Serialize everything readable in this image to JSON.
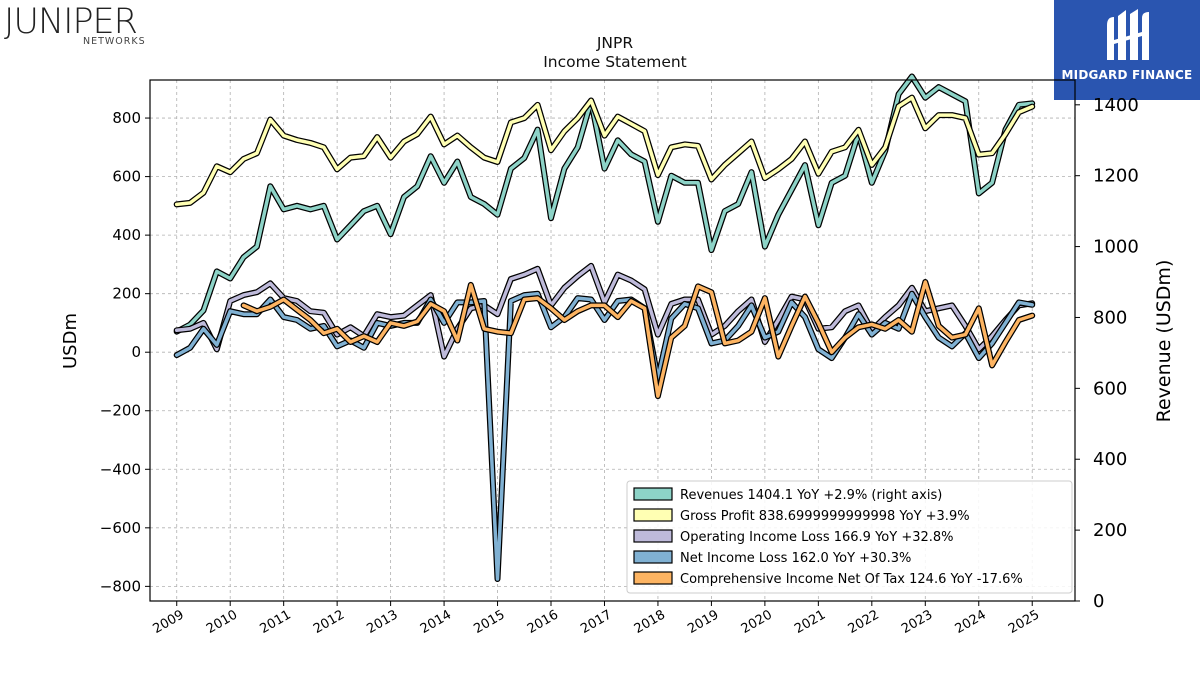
{
  "header": {
    "ticker": "JNPR",
    "subtitle": "Income Statement"
  },
  "logos": {
    "left_word": "JUNIPER",
    "left_sub": "NETWORKS",
    "right_text": "MIDGARD FINANCE",
    "right_bg": "#2a55b0"
  },
  "chart_data": {
    "type": "line",
    "ylabel_left": "USDm",
    "ylabel_right": "Revenue (USDm)",
    "ylim_left": [
      -850,
      930
    ],
    "ylim_right": [
      0,
      1470
    ],
    "yticks_left": [
      -800,
      -600,
      -400,
      -200,
      0,
      200,
      400,
      600,
      800
    ],
    "yticks_right": [
      0,
      200,
      400,
      600,
      800,
      1000,
      1200,
      1400
    ],
    "xlim": [
      2008.5,
      2025.8
    ],
    "xticks": [
      2009,
      2010,
      2011,
      2012,
      2013,
      2014,
      2015,
      2016,
      2017,
      2018,
      2019,
      2020,
      2021,
      2022,
      2023,
      2024,
      2025
    ],
    "grid": true,
    "legend_position": "lower-right",
    "series": [
      {
        "name": "Revenues  1404.1 YoY +2.9% (right axis)",
        "axis": "right",
        "color": "#8dd3c7",
        "x": [
          2009.0,
          2009.25,
          2009.5,
          2009.75,
          2010.0,
          2010.25,
          2010.5,
          2010.75,
          2011.0,
          2011.25,
          2011.5,
          2011.75,
          2012.0,
          2012.25,
          2012.5,
          2012.75,
          2013.0,
          2013.25,
          2013.5,
          2013.75,
          2014.0,
          2014.25,
          2014.5,
          2014.75,
          2015.0,
          2015.25,
          2015.5,
          2015.75,
          2016.0,
          2016.25,
          2016.5,
          2016.75,
          2017.0,
          2017.25,
          2017.5,
          2017.75,
          2018.0,
          2018.25,
          2018.5,
          2018.75,
          2019.0,
          2019.25,
          2019.5,
          2019.75,
          2020.0,
          2020.25,
          2020.5,
          2020.75,
          2021.0,
          2021.25,
          2021.5,
          2021.75,
          2022.0,
          2022.25,
          2022.5,
          2022.75,
          2023.0,
          2023.25,
          2023.5,
          2023.75,
          2024.0,
          2024.25,
          2024.5,
          2024.75,
          2025.0
        ],
        "values": [
          760,
          780,
          820,
          930,
          910,
          970,
          1000,
          1170,
          1105,
          1115,
          1105,
          1115,
          1020,
          1060,
          1100,
          1115,
          1035,
          1140,
          1170,
          1255,
          1180,
          1240,
          1140,
          1120,
          1090,
          1220,
          1250,
          1330,
          1080,
          1220,
          1280,
          1410,
          1220,
          1300,
          1260,
          1240,
          1070,
          1200,
          1180,
          1180,
          990,
          1100,
          1120,
          1210,
          1000,
          1090,
          1160,
          1230,
          1060,
          1180,
          1200,
          1320,
          1180,
          1270,
          1430,
          1480,
          1420,
          1450,
          1430,
          1410,
          1150,
          1180,
          1330,
          1400,
          1404
        ]
      },
      {
        "name": "Gross Profit  838.6999999999998 YoY +3.9%",
        "axis": "left",
        "color": "#ffffb3",
        "x": [
          2009.0,
          2009.25,
          2009.5,
          2009.75,
          2010.0,
          2010.25,
          2010.5,
          2010.75,
          2011.0,
          2011.25,
          2011.5,
          2011.75,
          2012.0,
          2012.25,
          2012.5,
          2012.75,
          2013.0,
          2013.25,
          2013.5,
          2013.75,
          2014.0,
          2014.25,
          2014.5,
          2014.75,
          2015.0,
          2015.25,
          2015.5,
          2015.75,
          2016.0,
          2016.25,
          2016.5,
          2016.75,
          2017.0,
          2017.25,
          2017.5,
          2017.75,
          2018.0,
          2018.25,
          2018.5,
          2018.75,
          2019.0,
          2019.25,
          2019.5,
          2019.75,
          2020.0,
          2020.25,
          2020.5,
          2020.75,
          2021.0,
          2021.25,
          2021.5,
          2021.75,
          2022.0,
          2022.25,
          2022.5,
          2022.75,
          2023.0,
          2023.25,
          2023.5,
          2023.75,
          2024.0,
          2024.25,
          2024.5,
          2024.75,
          2025.0
        ],
        "values": [
          505,
          510,
          545,
          635,
          615,
          660,
          680,
          795,
          740,
          725,
          715,
          700,
          625,
          665,
          670,
          735,
          665,
          720,
          745,
          805,
          710,
          740,
          700,
          665,
          650,
          785,
          800,
          845,
          690,
          755,
          800,
          860,
          740,
          805,
          780,
          755,
          605,
          700,
          710,
          705,
          590,
          640,
          680,
          720,
          595,
          625,
          660,
          720,
          610,
          685,
          700,
          760,
          640,
          700,
          840,
          870,
          765,
          810,
          810,
          800,
          675,
          680,
          745,
          820,
          839
        ]
      },
      {
        "name": "Operating Income Loss  166.9 YoY +32.8%",
        "axis": "left",
        "color": "#bebada",
        "x": [
          2009.0,
          2009.25,
          2009.5,
          2009.75,
          2010.0,
          2010.25,
          2010.5,
          2010.75,
          2011.0,
          2011.25,
          2011.5,
          2011.75,
          2012.0,
          2012.25,
          2012.5,
          2012.75,
          2013.0,
          2013.25,
          2013.5,
          2013.75,
          2014.0,
          2014.25,
          2014.5,
          2014.75,
          2015.0,
          2015.25,
          2015.5,
          2015.75,
          2016.0,
          2016.25,
          2016.5,
          2016.75,
          2017.0,
          2017.25,
          2017.5,
          2017.75,
          2018.0,
          2018.25,
          2018.5,
          2018.75,
          2019.0,
          2019.25,
          2019.5,
          2019.75,
          2020.0,
          2020.25,
          2020.5,
          2020.75,
          2021.0,
          2021.25,
          2021.5,
          2021.75,
          2022.0,
          2022.25,
          2022.5,
          2022.75,
          2023.0,
          2023.25,
          2023.5,
          2023.75,
          2024.0,
          2024.25,
          2024.5,
          2024.75,
          2025.0
        ],
        "values": [
          75,
          80,
          100,
          10,
          175,
          195,
          205,
          235,
          185,
          175,
          140,
          135,
          60,
          85,
          55,
          130,
          120,
          125,
          160,
          195,
          -15,
          80,
          150,
          160,
          130,
          250,
          265,
          285,
          160,
          220,
          260,
          295,
          170,
          265,
          245,
          215,
          60,
          165,
          180,
          180,
          60,
          90,
          140,
          180,
          35,
          110,
          190,
          180,
          80,
          85,
          140,
          160,
          75,
          120,
          160,
          220,
          140,
          150,
          160,
          90,
          10,
          55,
          110,
          160,
          167
        ]
      },
      {
        "name": "Net Income Loss  162.0 YoY +30.3%",
        "axis": "left",
        "color": "#80b1d3",
        "x": [
          2009.0,
          2009.25,
          2009.5,
          2009.75,
          2010.0,
          2010.25,
          2010.5,
          2010.75,
          2011.0,
          2011.25,
          2011.5,
          2011.75,
          2012.0,
          2012.25,
          2012.5,
          2012.75,
          2013.0,
          2013.25,
          2013.5,
          2013.75,
          2014.0,
          2014.25,
          2014.5,
          2014.75,
          2015.0,
          2015.25,
          2015.5,
          2015.75,
          2016.0,
          2016.25,
          2016.5,
          2016.75,
          2017.0,
          2017.25,
          2017.5,
          2017.75,
          2018.0,
          2018.25,
          2018.5,
          2018.75,
          2019.0,
          2019.25,
          2019.5,
          2019.75,
          2020.0,
          2020.25,
          2020.5,
          2020.75,
          2021.0,
          2021.25,
          2021.5,
          2021.75,
          2022.0,
          2022.25,
          2022.5,
          2022.75,
          2023.0,
          2023.25,
          2023.5,
          2023.75,
          2024.0,
          2024.25,
          2024.5,
          2024.75,
          2025.0
        ],
        "values": [
          -10,
          15,
          80,
          25,
          140,
          130,
          130,
          180,
          120,
          110,
          80,
          90,
          20,
          40,
          15,
          100,
          90,
          100,
          100,
          180,
          100,
          170,
          170,
          175,
          -775,
          175,
          195,
          200,
          85,
          120,
          185,
          180,
          110,
          175,
          180,
          150,
          -90,
          115,
          165,
          150,
          30,
          40,
          90,
          160,
          50,
          70,
          170,
          120,
          10,
          -20,
          50,
          130,
          60,
          100,
          80,
          200,
          120,
          50,
          20,
          65,
          -20,
          30,
          100,
          170,
          162
        ]
      },
      {
        "name": "Comprehensive Income Net Of Tax  124.6 YoY -17.6%",
        "axis": "left",
        "color": "#fdb462",
        "x": [
          2010.25,
          2010.5,
          2010.75,
          2011.0,
          2011.25,
          2011.5,
          2011.75,
          2012.0,
          2012.25,
          2012.5,
          2012.75,
          2013.0,
          2013.25,
          2013.5,
          2013.75,
          2014.0,
          2014.25,
          2014.5,
          2014.75,
          2015.0,
          2015.25,
          2015.5,
          2015.75,
          2016.0,
          2016.25,
          2016.5,
          2016.75,
          2017.0,
          2017.25,
          2017.5,
          2017.75,
          2018.0,
          2018.25,
          2018.5,
          2018.75,
          2019.0,
          2019.25,
          2019.5,
          2019.75,
          2020.0,
          2020.25,
          2020.5,
          2020.75,
          2021.0,
          2021.25,
          2021.5,
          2021.75,
          2022.0,
          2022.25,
          2022.5,
          2022.75,
          2023.0,
          2023.25,
          2023.5,
          2023.75,
          2024.0,
          2024.25,
          2024.5,
          2024.75,
          2025.0
        ],
        "values": [
          160,
          140,
          155,
          180,
          145,
          110,
          65,
          80,
          35,
          55,
          35,
          100,
          90,
          105,
          165,
          140,
          40,
          230,
          80,
          70,
          65,
          180,
          185,
          150,
          110,
          140,
          160,
          160,
          120,
          175,
          150,
          -150,
          50,
          90,
          225,
          205,
          30,
          40,
          70,
          185,
          -15,
          90,
          190,
          100,
          0,
          50,
          85,
          95,
          80,
          110,
          70,
          240,
          90,
          50,
          60,
          150,
          -45,
          35,
          110,
          125
        ]
      }
    ]
  }
}
